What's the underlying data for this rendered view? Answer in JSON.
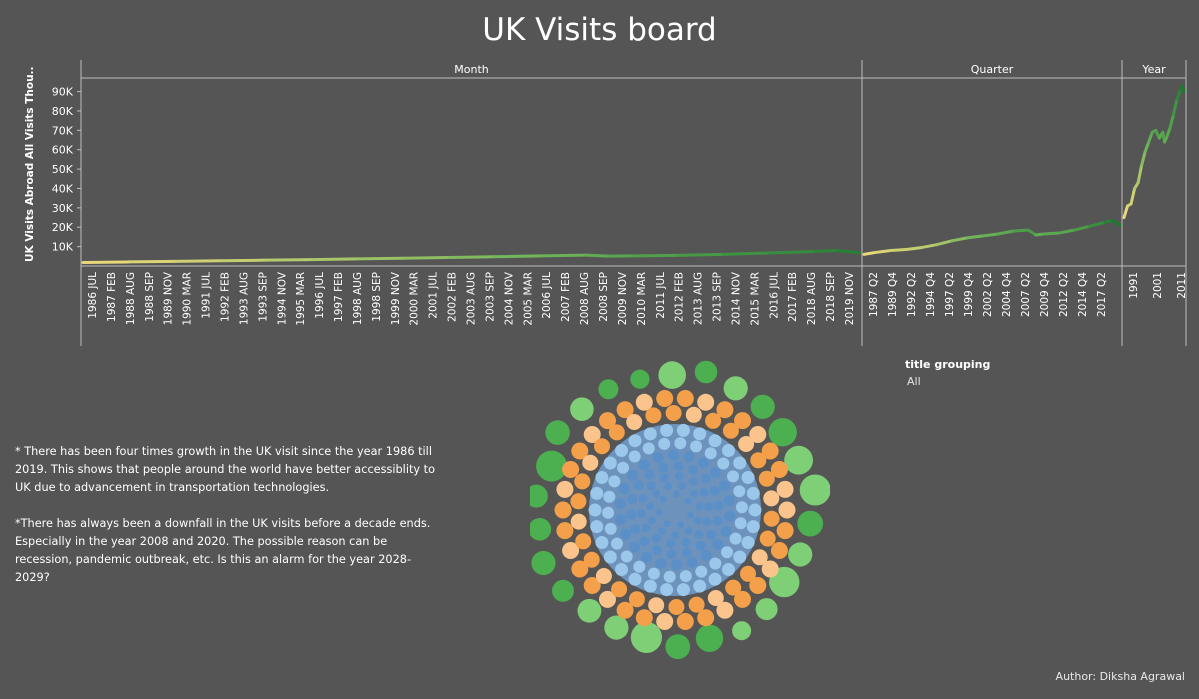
{
  "title": "UK Visits board",
  "colors": {
    "background": "#555555",
    "line_low": "#e8d87a",
    "line_high": "#1e7a32",
    "bubble_green": "#4caf50",
    "bubble_light_green": "#7fcf76",
    "bubble_orange": "#f4a04b",
    "bubble_light_orange": "#fbc48c",
    "bubble_blue": "#5b8fc7",
    "bubble_light_blue": "#9ac7ea"
  },
  "chart_data": [
    {
      "type": "line",
      "ylabel": "UK Visits Abroad All Visits Thou..",
      "ylim": [
        0,
        97000
      ],
      "yticks": [
        "10K",
        "20K",
        "30K",
        "40K",
        "50K",
        "60K",
        "70K",
        "80K",
        "90K"
      ],
      "yticks_values": [
        10000,
        20000,
        30000,
        40000,
        50000,
        60000,
        70000,
        80000,
        90000
      ],
      "panels": [
        {
          "name": "Month",
          "x_tick_labels": [
            "1986 JUL",
            "1987 FEB",
            "1988 AUG",
            "1988 SEP",
            "1989 NOV",
            "1990 MAR",
            "1991 JUL",
            "1992 FEB",
            "1993 AUG",
            "1993 SEP",
            "1994 NOV",
            "1995 MAR",
            "1996 JUL",
            "1997 FEB",
            "1998 AUG",
            "1998 SEP",
            "1999 NOV",
            "2000 MAR",
            "2001 JUL",
            "2002 FEB",
            "2003 AUG",
            "2003 SEP",
            "2004 NOV",
            "2005 MAR",
            "2006 JUL",
            "2007 FEB",
            "2008 AUG",
            "2008 SEP",
            "2009 NOV",
            "2010 MAR",
            "2011 JUL",
            "2012 FEB",
            "2013 AUG",
            "2013 SEP",
            "2014 NOV",
            "2015 MAR",
            "2016 JUL",
            "2017 FEB",
            "2018 AUG",
            "2018 SEP",
            "2019 NOV"
          ],
          "x": [
            1986,
            1988,
            1990,
            1992,
            1994,
            1996,
            1998,
            2000,
            2002,
            2004,
            2006,
            2008,
            2009,
            2010,
            2012,
            2014,
            2016,
            2018,
            2019,
            2020
          ],
          "values": [
            1800,
            2100,
            2400,
            2700,
            3000,
            3300,
            3700,
            4000,
            4400,
            4800,
            5200,
            5600,
            5100,
            5200,
            5500,
            6000,
            6700,
            7500,
            8000,
            6800
          ]
        },
        {
          "name": "Quarter",
          "x_tick_labels": [
            "1987 Q2",
            "1989 Q4",
            "1992 Q2",
            "1994 Q4",
            "1997 Q2",
            "1999 Q4",
            "2002 Q2",
            "2004 Q4",
            "2007 Q2",
            "2009 Q4",
            "2012 Q2",
            "2014 Q4",
            "2017 Q2"
          ],
          "x": [
            1986.5,
            1988,
            1990,
            1992,
            1994,
            1996,
            1998,
            2000,
            2002,
            2004,
            2006,
            2008,
            2009,
            2010,
            2012,
            2014,
            2016,
            2018,
            2019,
            2020
          ],
          "values": [
            6000,
            7000,
            8000,
            8500,
            9500,
            11000,
            13000,
            14500,
            15500,
            16500,
            18000,
            18500,
            16000,
            16500,
            17000,
            18500,
            20500,
            22500,
            23500,
            21000
          ]
        },
        {
          "name": "Year",
          "x_tick_labels": [
            "1991",
            "2001",
            "2011"
          ],
          "x": [
            1986,
            1988,
            1990,
            1992,
            1994,
            1996,
            1998,
            2000,
            2002,
            2004,
            2006,
            2008,
            2009,
            2010,
            2012,
            2014,
            2016,
            2018,
            2019,
            2020
          ],
          "values": [
            25000,
            31000,
            32000,
            40000,
            43000,
            52000,
            59000,
            64000,
            69000,
            70000,
            66000,
            69000,
            64000,
            66000,
            71000,
            78000,
            86000,
            91000,
            93000,
            90000
          ]
        }
      ]
    },
    {
      "type": "packed-bubble",
      "groups": [
        {
          "color": "#4caf50"
        },
        {
          "color": "#7fcf76"
        },
        {
          "color": "#f4a04b"
        },
        {
          "color": "#fbc48c"
        },
        {
          "color": "#5b8fc7"
        },
        {
          "color": "#9ac7ea"
        }
      ]
    }
  ],
  "filter": {
    "title": "title grouping",
    "value": "All"
  },
  "notes": [
    "* There has been four times growth in the UK visit since the year 1986 till 2019. This shows that people around the world have better accessiblity to UK due to advancement in transportation technologies.",
    "*There has always been a downfall in the UK visits before a decade ends. Especially in the year 2008 and 2020. The possible reason can be recession, pandemic outbreak, etc. Is this an alarm for the year 2028-2029?"
  ],
  "author": "Author: Diksha Agrawal"
}
